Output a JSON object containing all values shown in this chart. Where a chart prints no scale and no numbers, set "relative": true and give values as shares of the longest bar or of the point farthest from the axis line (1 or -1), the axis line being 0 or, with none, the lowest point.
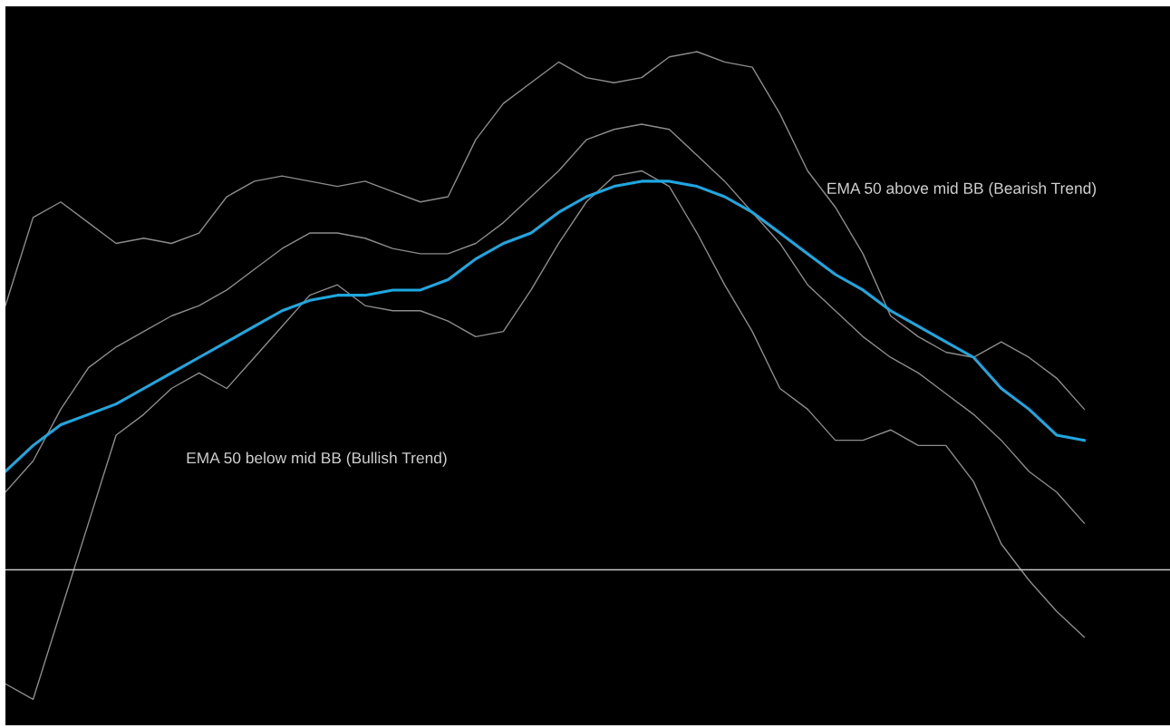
{
  "chart_data": {
    "type": "line",
    "relative": true,
    "grid": false,
    "legend": false,
    "marker": "none",
    "line_style": "solid",
    "categories": [
      null,
      null,
      null,
      null,
      null,
      null,
      null,
      null,
      null,
      null,
      null,
      null,
      null,
      null,
      null,
      null,
      null,
      null,
      null,
      null,
      null,
      null,
      null,
      null,
      null,
      null,
      null,
      null,
      null,
      null,
      null,
      null,
      null,
      null,
      null,
      null,
      null,
      null,
      null,
      null,
      null,
      null,
      null
    ],
    "series": [
      {
        "color": "#8c8c8c",
        "values": [
          0.51,
          0.68,
          0.71,
          0.67,
          0.63,
          0.64,
          0.63,
          0.65,
          0.72,
          0.75,
          0.76,
          0.75,
          0.74,
          0.75,
          0.73,
          0.71,
          0.72,
          0.83,
          0.9,
          0.94,
          0.98,
          0.95,
          0.94,
          0.95,
          0.99,
          1.0,
          0.98,
          0.97,
          0.88,
          0.77,
          0.7,
          0.61,
          0.49,
          0.45,
          0.42,
          0.41,
          0.44,
          0.41,
          0.37,
          0.31,
          null,
          null,
          null
        ]
      },
      {
        "color": "#8c8c8c",
        "values": [
          0.15,
          0.21,
          0.31,
          0.39,
          0.43,
          0.46,
          0.49,
          0.51,
          0.54,
          0.58,
          0.62,
          0.65,
          0.65,
          0.64,
          0.62,
          0.61,
          0.61,
          0.63,
          0.67,
          0.72,
          0.77,
          0.83,
          0.85,
          0.86,
          0.85,
          0.8,
          0.75,
          0.69,
          0.63,
          0.55,
          0.5,
          0.45,
          0.41,
          0.38,
          0.34,
          0.3,
          0.25,
          0.19,
          0.15,
          0.09,
          null,
          null,
          null
        ]
      },
      {
        "color": "#8c8c8c",
        "values": [
          -0.22,
          -0.25,
          -0.08,
          0.09,
          0.26,
          0.3,
          0.35,
          0.38,
          0.35,
          0.41,
          0.47,
          0.53,
          0.55,
          0.51,
          0.5,
          0.5,
          0.48,
          0.45,
          0.46,
          0.54,
          0.63,
          0.71,
          0.76,
          0.77,
          0.74,
          0.65,
          0.55,
          0.46,
          0.35,
          0.31,
          0.25,
          0.25,
          0.27,
          0.24,
          0.24,
          0.17,
          0.05,
          -0.02,
          -0.08,
          -0.13,
          null,
          null,
          null
        ]
      },
      {
        "color": "#1ea7e1",
        "values": [
          0.19,
          0.24,
          0.28,
          0.3,
          0.32,
          0.35,
          0.38,
          0.41,
          0.44,
          0.47,
          0.5,
          0.52,
          0.53,
          0.53,
          0.54,
          0.54,
          0.56,
          0.6,
          0.63,
          0.65,
          0.69,
          0.72,
          0.74,
          0.75,
          0.75,
          0.74,
          0.72,
          0.69,
          0.65,
          0.61,
          0.57,
          0.54,
          0.5,
          0.47,
          0.44,
          0.41,
          0.35,
          0.31,
          0.26,
          0.25,
          null,
          null,
          null
        ]
      }
    ],
    "annotations": [
      "EMA 50 above mid BB (Bearish Trend)",
      "EMA 50 below mid BB (Bullish Trend)"
    ]
  }
}
